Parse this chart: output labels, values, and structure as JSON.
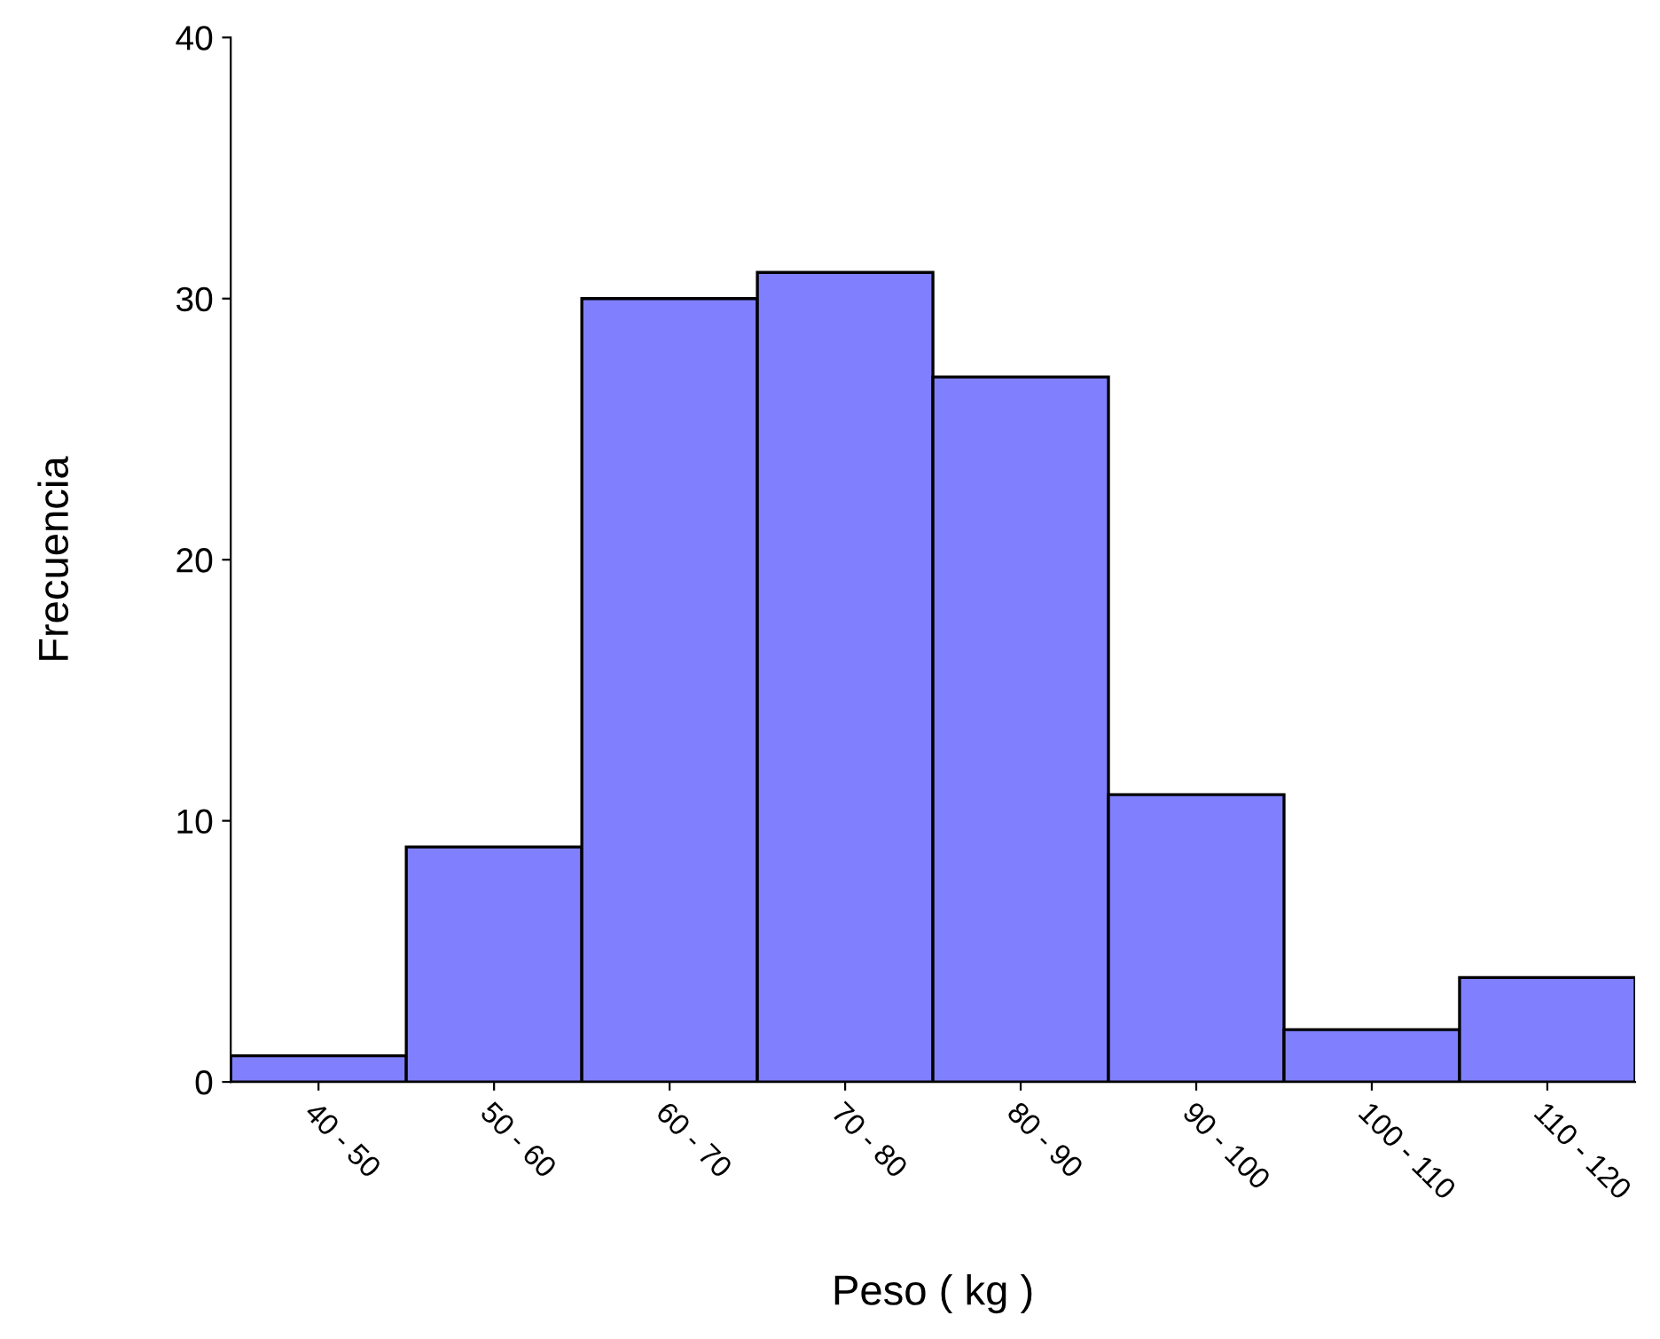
{
  "chart_data": {
    "type": "bar",
    "xlabel": "Peso ( kg )",
    "ylabel": "Frecuencia",
    "categories": [
      "40 - 50",
      "50 - 60",
      "60 - 70",
      "70 - 80",
      "80 - 90",
      "90 - 100",
      "100 - 110",
      "110 - 120"
    ],
    "values": [
      1,
      9,
      30,
      31,
      27,
      11,
      2,
      4
    ],
    "color": "#8080ff",
    "ylim": [
      0,
      40
    ],
    "yticks": [
      0,
      10,
      20,
      30,
      40
    ],
    "grid": false
  }
}
